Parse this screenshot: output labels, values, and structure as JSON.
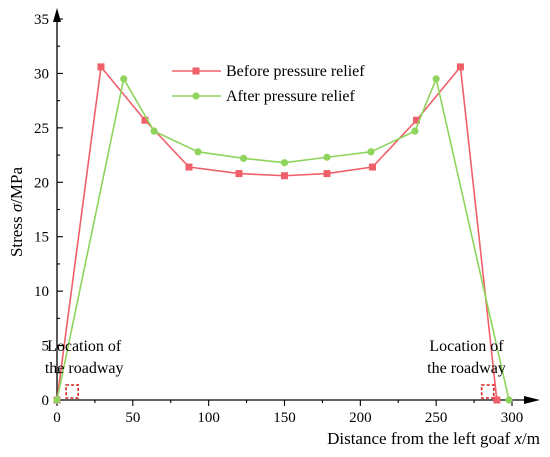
{
  "chart_data": {
    "type": "line",
    "xlabel_prefix": "Distance from the left goaf ",
    "xlabel_var": "x",
    "xlabel_suffix": "/m",
    "ylabel_prefix": "Stress ",
    "ylabel_var": "σ",
    "ylabel_suffix": "/MPa",
    "xlim": [
      0,
      300
    ],
    "ylim": [
      0,
      35
    ],
    "xticks": [
      0,
      50,
      100,
      150,
      200,
      250,
      300
    ],
    "yticks": [
      0,
      5,
      10,
      15,
      20,
      25,
      30,
      35
    ],
    "legend_position": "top-center",
    "series": [
      {
        "name": "Before pressure relief",
        "color": "#f0606a",
        "marker": "square",
        "x": [
          0,
          29,
          58,
          87,
          120,
          150,
          178,
          208,
          237,
          266,
          290
        ],
        "y": [
          0,
          30.6,
          25.7,
          21.4,
          20.8,
          20.6,
          20.8,
          21.4,
          25.7,
          30.6,
          0
        ]
      },
      {
        "name": "After pressure relief",
        "color": "#8fd45c",
        "marker": "circle",
        "x": [
          0,
          44,
          64,
          93,
          123,
          150,
          178,
          207,
          236,
          250,
          298
        ],
        "y": [
          0,
          29.5,
          24.7,
          22.8,
          22.2,
          21.8,
          22.3,
          22.8,
          24.7,
          29.5,
          0
        ]
      }
    ],
    "annotations": [
      {
        "lines": [
          "Location of",
          "the roadway"
        ],
        "x_anchor": 10,
        "y_anchor": 4.5
      },
      {
        "lines": [
          "Location of",
          "the roadway"
        ],
        "x_anchor": 270,
        "y_anchor": 4.5
      }
    ],
    "roadways": [
      {
        "x0": 6,
        "x1": 14
      },
      {
        "x0": 280,
        "x1": 288
      }
    ]
  }
}
